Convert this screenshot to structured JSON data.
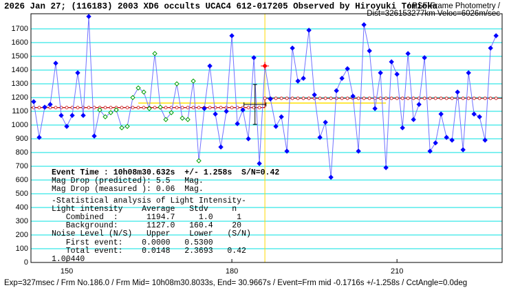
{
  "chart_data": {
    "type": "lightcurve",
    "title": "2026 Jan 27; (116183) 2003 XD6 occults UCAC4 612-017205 Observed by Hiroyuki Tomioka",
    "subtitle": "/ PSF-Frame Photometry /",
    "subtitle2": "Dist=326153277km Veloc=6026m/sec",
    "footer": "Exp=327msec / Frm No.186.0 / Frm Mid= 10h08m30.8033s, End= 30.9667s / Event=Frm mid -0.1716s +/-1.258s / CctAngle=0.0deg",
    "stats_lines": [
      "Event Time : 10h08m30.632s  +/- 1.258s  S/N=0.42",
      "Mag Drop (predicted): 5.5   Mag.",
      "Mag Drop (measured ): 0.06  Mag.",
      "-Statistical analysis of Light Intensity-",
      "Light intensity    Average   Stdv     n",
      "   Combined  :      1194.7     1.0     1",
      "   Background:      1127.0   160.4    20",
      "Noise Level (N/S)   Upper    Lower   (S/N)",
      "   First event:    0.0000   0.5300",
      "   Total event:    0.0148   2.3693   0.42",
      "1.00440"
    ],
    "xlim": [
      143.5,
      229.1
    ],
    "xticks": [
      150,
      180,
      210
    ],
    "ylim": [
      0,
      1810
    ],
    "yticks": [
      0,
      100,
      200,
      300,
      400,
      500,
      600,
      700,
      800,
      900,
      1000,
      1100,
      1200,
      1300,
      1400,
      1500,
      1600,
      1700
    ],
    "grid": true,
    "grid_color": "#00e0e0",
    "x": [
      144,
      145,
      146,
      147,
      148,
      149,
      150,
      151,
      152,
      153,
      154,
      155,
      156,
      157,
      158,
      159,
      160,
      161,
      162,
      163,
      164,
      165,
      166,
      167,
      168,
      169,
      170,
      171,
      172,
      173,
      174,
      175,
      176,
      177,
      178,
      179,
      180,
      181,
      182,
      183,
      184,
      185,
      186,
      187,
      188,
      189,
      190,
      191,
      192,
      193,
      194,
      195,
      196,
      197,
      198,
      199,
      200,
      201,
      202,
      203,
      204,
      205,
      206,
      207,
      208,
      209,
      210,
      211,
      212,
      213,
      214,
      215,
      216,
      217,
      218,
      219,
      220,
      221,
      222,
      223,
      224,
      225,
      226,
      227,
      228
    ],
    "series": [
      {
        "name": "Light intensity",
        "color": "#7070ff",
        "values": [
          1170,
          910,
          1130,
          1150,
          1450,
          1070,
          990,
          1070,
          1380,
          1070,
          1790,
          920,
          1110,
          1060,
          1090,
          1110,
          980,
          990,
          1200,
          1270,
          1240,
          1120,
          1520,
          1130,
          1040,
          1090,
          1300,
          1050,
          1040,
          1320,
          740,
          1120,
          1430,
          1080,
          840,
          1100,
          1650,
          1010,
          1110,
          900,
          1490,
          720,
          1430,
          1190,
          990,
          1060,
          810,
          1560,
          1320,
          1340,
          1690,
          1220,
          910,
          1020,
          620,
          1250,
          1340,
          1410,
          1210,
          810,
          1730,
          1540,
          1120,
          1380,
          690,
          1460,
          1370,
          980,
          1520,
          1040,
          1150,
          1490,
          810,
          870,
          1080,
          910,
          890,
          1240,
          820,
          1380,
          1080,
          1060,
          890,
          1560,
          1650
        ],
        "marker_colors": [
          "#0000ff",
          "#0000ff",
          "#0000ff",
          "#0000ff",
          "#0000ff",
          "#0000ff",
          "#0000ff",
          "#0000ff",
          "#0000ff",
          "#0000ff",
          "#0000ff",
          "#0000ff",
          "#00a000",
          "#00a000",
          "#00a000",
          "#00a000",
          "#00a000",
          "#00a000",
          "#00a000",
          "#00a000",
          "#00a000",
          "#00a000",
          "#00a000",
          "#00a000",
          "#00a000",
          "#00a000",
          "#00a000",
          "#00a000",
          "#00a000",
          "#00a000",
          "#00a000",
          "#0000ff",
          "#0000ff",
          "#0000ff",
          "#0000ff",
          "#0000ff",
          "#0000ff",
          "#0000ff",
          "#0000ff",
          "#0000ff",
          "#0000ff",
          "#0000ff",
          "#ff0000",
          "#0000ff",
          "#0000ff",
          "#0000ff",
          "#0000ff",
          "#0000ff",
          "#0000ff",
          "#0000ff",
          "#0000ff",
          "#0000ff",
          "#0000ff",
          "#0000ff",
          "#0000ff",
          "#0000ff",
          "#0000ff",
          "#0000ff",
          "#0000ff",
          "#0000ff",
          "#0000ff",
          "#0000ff",
          "#0000ff",
          "#0000ff",
          "#0000ff",
          "#0000ff",
          "#0000ff",
          "#0000ff",
          "#0000ff",
          "#0000ff",
          "#0000ff",
          "#0000ff",
          "#0000ff",
          "#0000ff",
          "#0000ff",
          "#0000ff",
          "#0000ff",
          "#0000ff",
          "#0000ff",
          "#0000ff",
          "#0000ff",
          "#0000ff",
          "#0000ff",
          "#0000ff",
          "#0000ff"
        ]
      }
    ],
    "fit": {
      "color": "#c00000",
      "before": 1127.0,
      "after": 1194.7,
      "event_frame": 186.0,
      "event_color": "#ffd800"
    },
    "reference": {
      "value": 1160,
      "range": [
        163,
        208
      ],
      "color": "#ffe000"
    },
    "error_cross": {
      "x": 184.2,
      "y": 1150,
      "xerr": 2,
      "yerr": 145
    }
  }
}
